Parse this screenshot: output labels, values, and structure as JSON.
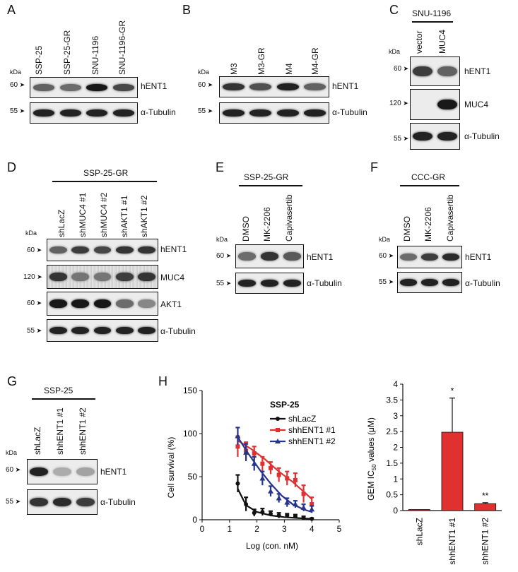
{
  "panels": {
    "A": {
      "letter": "A",
      "lanes": [
        "SSP-25",
        "SSP-25-GR",
        "SNU-1196",
        "SNU-1196-GR"
      ],
      "kda": "kDa",
      "blots": [
        {
          "mw": "60",
          "protein": "hENT1",
          "intensity": [
            0.55,
            0.5,
            0.95,
            0.7
          ]
        },
        {
          "mw": "55",
          "protein": "α-Tubulin",
          "intensity": [
            0.9,
            0.9,
            0.9,
            0.9
          ]
        }
      ]
    },
    "B": {
      "letter": "B",
      "lanes": [
        "M3",
        "M3-GR",
        "M4",
        "M4-GR"
      ],
      "kda": "kDa",
      "blots": [
        {
          "mw": "60",
          "protein": "hENT1",
          "intensity": [
            0.8,
            0.65,
            0.9,
            0.55
          ]
        },
        {
          "mw": "55",
          "protein": "α-Tubulin",
          "intensity": [
            0.9,
            0.9,
            0.9,
            0.9
          ]
        }
      ]
    },
    "C": {
      "letter": "C",
      "group": "SNU-1196",
      "lanes": [
        "vector",
        "MUC4"
      ],
      "kda": "kDa",
      "blots": [
        {
          "mw": "60",
          "protein": "hENT1",
          "intensity": [
            0.75,
            0.55
          ]
        },
        {
          "mw": "120",
          "protein": "MUC4",
          "intensity": [
            0.0,
            0.95
          ]
        },
        {
          "mw": "55",
          "protein": "α-Tubulin",
          "intensity": [
            0.9,
            0.9
          ]
        }
      ]
    },
    "D": {
      "letter": "D",
      "group": "SSP-25-GR",
      "lanes": [
        "shLacZ",
        "shMUC4 #1",
        "shMUC4 #2",
        "shAKT1 #1",
        "shAKT1 #2"
      ],
      "kda": "kDa",
      "blots": [
        {
          "mw": "60",
          "protein": "hENT1",
          "intensity": [
            0.55,
            0.75,
            0.7,
            0.8,
            0.8
          ]
        },
        {
          "mw": "120",
          "protein": "MUC4",
          "intensity": [
            0.8,
            0.45,
            0.45,
            0.75,
            0.8
          ]
        },
        {
          "mw": "60",
          "protein": "AKT1",
          "intensity": [
            0.95,
            0.95,
            0.95,
            0.5,
            0.35
          ]
        },
        {
          "mw": "55",
          "protein": "α-Tubulin",
          "intensity": [
            0.9,
            0.9,
            0.9,
            0.9,
            0.9
          ]
        }
      ]
    },
    "E": {
      "letter": "E",
      "group": "SSP-25-GR",
      "lanes": [
        "DMSO",
        "MK-2206",
        "Capivasertib"
      ],
      "kda": "kDa",
      "blots": [
        {
          "mw": "60",
          "protein": "hENT1",
          "intensity": [
            0.5,
            0.8,
            0.6
          ]
        },
        {
          "mw": "55",
          "protein": "α-Tubulin",
          "intensity": [
            0.9,
            0.9,
            0.9
          ]
        }
      ]
    },
    "F": {
      "letter": "F",
      "group": "CCC-GR",
      "lanes": [
        "DMSO",
        "MK-2206",
        "Capivasertib"
      ],
      "kda": "kDa",
      "blots": [
        {
          "mw": "60",
          "protein": "hENT1",
          "intensity": [
            0.5,
            0.75,
            0.85
          ]
        },
        {
          "mw": "55",
          "protein": "α-Tubulin",
          "intensity": [
            0.9,
            0.9,
            0.9
          ]
        }
      ]
    },
    "G": {
      "letter": "G",
      "group": "SSP-25",
      "lanes": [
        "shLacZ",
        "shhENT1 #1",
        "shhENT1 #2"
      ],
      "kda": "kDa",
      "blots": [
        {
          "mw": "60",
          "protein": "hENT1",
          "intensity": [
            0.9,
            0.15,
            0.2
          ]
        },
        {
          "mw": "55",
          "protein": "α-Tubulin",
          "intensity": [
            0.8,
            0.85,
            0.75
          ]
        }
      ]
    },
    "H": {
      "letter": "H"
    }
  },
  "chart_data": [
    {
      "type": "line",
      "title": "SSP-25",
      "xlabel": "Log (con. nM)",
      "ylabel": "Cell survival (%)",
      "xlim": [
        0,
        5
      ],
      "ylim": [
        0,
        150
      ],
      "xticks": [
        "0",
        "1",
        "2",
        "3",
        "4",
        "5"
      ],
      "yticks": [
        "0",
        "50",
        "100",
        "150"
      ],
      "legend_position": "top-right",
      "series": [
        {
          "name": "shLacZ",
          "color": "#111111",
          "marker": "circle",
          "x": [
            1.3,
            1.6,
            1.9,
            2.2,
            2.5,
            2.8,
            3.1,
            3.4,
            3.7,
            4.0
          ],
          "y": [
            42,
            18,
            8,
            9,
            7,
            5,
            5,
            4,
            2,
            1
          ],
          "err": [
            10,
            8,
            4,
            4,
            3,
            3,
            2,
            2,
            2,
            1
          ],
          "fit": [
            [
              1.3,
              36
            ],
            [
              1.6,
              17
            ],
            [
              2.0,
              9
            ],
            [
              2.5,
              5
            ],
            [
              3.0,
              3
            ],
            [
              3.5,
              2
            ],
            [
              4.0,
              1
            ]
          ]
        },
        {
          "name": "shhENT1 #1",
          "color": "#e03030",
          "marker": "square",
          "x": [
            1.3,
            1.6,
            1.9,
            2.2,
            2.5,
            2.8,
            3.1,
            3.4,
            3.7,
            4.0
          ],
          "y": [
            85,
            80,
            77,
            65,
            60,
            52,
            48,
            46,
            30,
            18
          ],
          "err": [
            12,
            10,
            8,
            8,
            7,
            8,
            8,
            8,
            10,
            8
          ],
          "fit": [
            [
              1.3,
              92
            ],
            [
              1.8,
              82
            ],
            [
              2.3,
              70
            ],
            [
              2.8,
              56
            ],
            [
              3.3,
              44
            ],
            [
              3.8,
              30
            ],
            [
              4.0,
              24
            ]
          ]
        },
        {
          "name": "shhENT1 #2",
          "color": "#27348b",
          "marker": "triangle",
          "x": [
            1.3,
            1.6,
            1.9,
            2.2,
            2.5,
            2.8,
            3.1,
            3.4,
            3.7,
            4.0
          ],
          "y": [
            97,
            78,
            65,
            48,
            33,
            25,
            20,
            18,
            14,
            12
          ],
          "err": [
            10,
            10,
            8,
            8,
            6,
            5,
            5,
            4,
            4,
            4
          ],
          "fit": [
            [
              1.3,
              96
            ],
            [
              1.7,
              76
            ],
            [
              2.1,
              58
            ],
            [
              2.5,
              42
            ],
            [
              2.9,
              28
            ],
            [
              3.3,
              18
            ],
            [
              3.7,
              12
            ],
            [
              4.0,
              9
            ]
          ]
        }
      ]
    },
    {
      "type": "bar",
      "ylabel": "GEM IC50 values (μM)",
      "ylabel_main": "GEM IC",
      "ylabel_sub": "50",
      "ylabel_tail": " values (μM)",
      "categories": [
        "shLacZ",
        "shhENT1 #1",
        "shhENT1 #2"
      ],
      "values": [
        0.02,
        2.48,
        0.22
      ],
      "err": [
        0.01,
        1.08,
        0.03
      ],
      "annotations": [
        "",
        "*",
        "**"
      ],
      "colors": [
        "#e03030",
        "#e03030",
        "#e03030"
      ],
      "ylim": [
        0,
        4
      ],
      "yticks": [
        "0",
        "0.5",
        "1",
        "1.5",
        "2",
        "2.5",
        "3",
        "3.5",
        "4"
      ]
    }
  ]
}
